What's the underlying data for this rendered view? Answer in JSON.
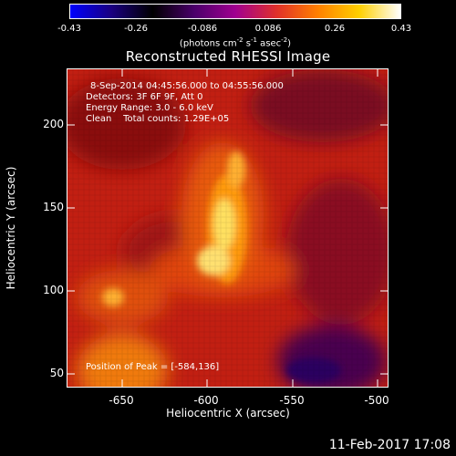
{
  "colorbar": {
    "tick_labels": [
      "-0.43",
      "-0.26",
      "-0.086",
      "0.086",
      "0.26",
      "0.43"
    ],
    "units_text": "(photons cm",
    "units_exp1": "-2",
    "units_mid": " s",
    "units_exp2": "-1",
    "units_mid2": " asec",
    "units_exp3": "-2",
    "units_end": ")",
    "colormap": [
      "#0000ff",
      "#1a0080",
      "#000000",
      "#4a006a",
      "#a00090",
      "#e0302a",
      "#ff8000",
      "#ffd000",
      "#ffffff"
    ]
  },
  "title": "Reconstructed RHESSI Image",
  "info": {
    "time_range": "8-Sep-2014 04:45:56.000 to 04:55:56.000",
    "detectors": "Detectors: 3F 6F 9F, Att 0",
    "energy": "Energy Range: 3.0 - 6.0 keV",
    "clean": "Clean    Total counts: 1.29E+05",
    "peak": "Position of Peak = [-584,136]"
  },
  "axes": {
    "xlabel": "Heliocentric X (arcsec)",
    "ylabel": "Heliocentric Y (arcsec)",
    "xticks": [
      "-650",
      "-600",
      "-550",
      "-500"
    ],
    "yticks": [
      "200",
      "150",
      "100",
      "50"
    ],
    "xlim": [
      -675,
      -488
    ],
    "ylim": [
      43,
      229
    ]
  },
  "footer_date": "11-Feb-2017 17:08"
}
